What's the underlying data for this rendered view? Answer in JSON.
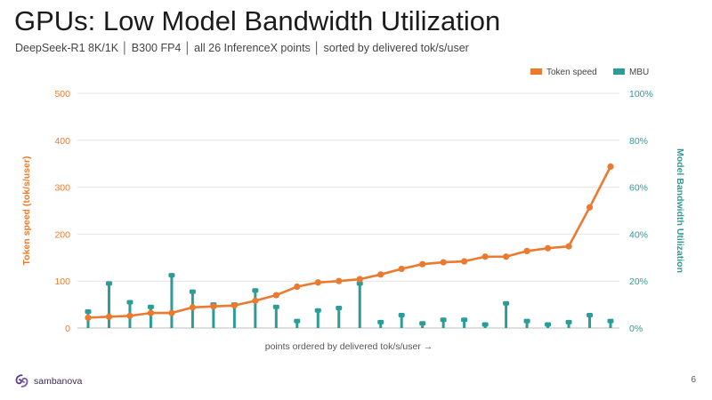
{
  "slide": {
    "title": "GPUs: Low Model Bandwidth Utilization",
    "subtitle": "DeepSeek-R1 8K/1K  │  B300 FP4  │  all 26 InferenceX points  │  sorted by delivered tok/s/user",
    "brand": "sambanova",
    "page_number": "6"
  },
  "chart_data": {
    "type": "bar",
    "xlabel": "points ordered by delivered tok/s/user  →",
    "ylabel_left": "Token speed (tok/s/user)",
    "ylabel_right": "Model Bandwidth Utilization",
    "ylim_left": [
      0,
      500
    ],
    "ylim_right": [
      0,
      100
    ],
    "yticks_left": [
      "0",
      "100",
      "200",
      "300",
      "400",
      "500"
    ],
    "yticks_right": [
      "0%",
      "20%",
      "40%",
      "60%",
      "80%",
      "100%"
    ],
    "legend_position": "top-right",
    "legend": [
      "Token speed",
      "MBU"
    ],
    "colors": {
      "token_speed": "#EB7A2E",
      "mbu": "#2A9D98",
      "axis_left": "#EB7A2E",
      "axis_right": "#2A9D98",
      "grid": "#e4e4e4"
    },
    "grid": true,
    "series": [
      {
        "name": "Token speed",
        "type": "line",
        "axis": "left",
        "values": [
          22,
          24,
          26,
          32,
          32,
          44,
          46,
          48,
          58,
          70,
          88,
          97,
          100,
          104,
          114,
          126,
          136,
          140,
          142,
          152,
          152,
          164,
          170,
          174,
          257,
          344
        ]
      },
      {
        "name": "MBU",
        "type": "bar",
        "axis": "right",
        "values": [
          7,
          19,
          11,
          9,
          22.5,
          15.5,
          10,
          10,
          16,
          9,
          3,
          7.5,
          8.5,
          19,
          2.5,
          5.5,
          2,
          3.5,
          3.5,
          1.5,
          10.5,
          3,
          1.5,
          2.5,
          5.5,
          3
        ]
      }
    ]
  }
}
